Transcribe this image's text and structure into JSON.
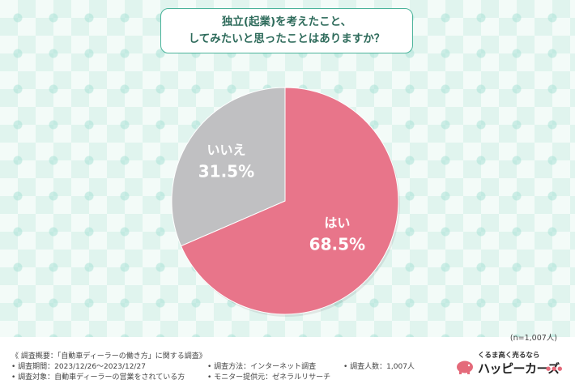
{
  "title": {
    "line1": "独立(起業)を考えたこと、",
    "line2": "してみたいと思ったことはありますか？"
  },
  "chart_data": {
    "type": "pie",
    "slices": [
      {
        "label": "はい",
        "value": 68.5,
        "value_text": "68.5%",
        "color": "#e8758a"
      },
      {
        "label": "いいえ",
        "value": 31.5,
        "value_text": "31.5%",
        "color": "#c0c0c2"
      }
    ],
    "start_angle_deg": 0,
    "direction": "clockwise"
  },
  "sample_note": "(n=1,007人)",
  "footer": {
    "overview": "《 調査概要：「自動車ディーラーの働き方」に関する調査》",
    "period": "• 調査期間：2023/12/26〜2023/12/27",
    "target": "• 調査対象：自動車ディーラーの営業をされている方",
    "method": "• 調査方法：インターネット調査",
    "provider": "• モニター提供元：ゼネラルリサーチ",
    "count": "• 調査人数：1,007人"
  },
  "logo": {
    "tagline": "くるま高く売るなら",
    "name": "ハッピーカーズ",
    "dots": "●●●",
    "icon": "piggy-bank-icon",
    "accent": "#e46a7a"
  },
  "colors": {
    "title_border": "#4bb39a",
    "title_text": "#2e6b5b",
    "slice_label_text": "#ffffff",
    "gray_label_text": "#ffffff"
  }
}
